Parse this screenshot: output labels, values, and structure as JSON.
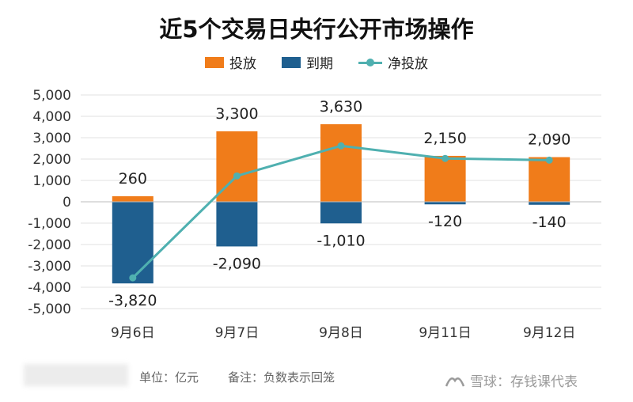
{
  "chart_data": {
    "type": "bar",
    "title": "近5个交易日央行公开市场操作",
    "categories": [
      "9月6日",
      "9月7日",
      "9月8日",
      "9月11日",
      "9月12日"
    ],
    "series": [
      {
        "name": "投放",
        "values": [
          260,
          3300,
          3630,
          2150,
          2090
        ],
        "color": "#F07C1A"
      },
      {
        "name": "到期",
        "values": [
          -3820,
          -2090,
          -1010,
          -120,
          -140
        ],
        "color": "#1F5F8F"
      },
      {
        "name": "净投放",
        "type": "line",
        "values": [
          -3560,
          1210,
          2620,
          2030,
          1950
        ],
        "color": "#4FB0B0"
      }
    ],
    "data_labels": {
      "投放": [
        "260",
        "3,300",
        "3,630",
        "2,150",
        "2,090"
      ],
      "到期": [
        "-3,820",
        "-2,090",
        "-1,010",
        "-120",
        "-140"
      ]
    },
    "ylim": [
      -5000,
      5000
    ],
    "yticks": [
      5000,
      4000,
      3000,
      2000,
      1000,
      0,
      -1000,
      -2000,
      -3000,
      -4000,
      -5000
    ],
    "ytick_labels": [
      "5,000",
      "4,000",
      "3,000",
      "2,000",
      "1,000",
      "0",
      "-1,000",
      "-2,000",
      "-3,000",
      "-4,000",
      "-5,000"
    ],
    "grid": true,
    "legend_position": "top"
  },
  "footer": {
    "unit": "单位：亿元",
    "note": "备注：负数表示回笼",
    "brand": "雪球：存钱课代表"
  }
}
